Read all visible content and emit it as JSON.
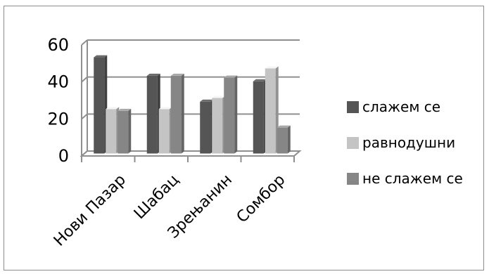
{
  "chart_data": {
    "type": "bar",
    "title": "",
    "xlabel": "",
    "ylabel": "",
    "ylim": [
      0,
      60
    ],
    "yticks": [
      0,
      20,
      40,
      60
    ],
    "grid": true,
    "legend_position": "right",
    "categories": [
      "Нови Пазар",
      "Шабац",
      "Зрењанин",
      "Сомбор"
    ],
    "series": [
      {
        "name": "слажем се",
        "color": "#555555",
        "values": [
          52,
          42,
          28,
          39
        ]
      },
      {
        "name": "равнодушни",
        "color": "#c4c4c4",
        "values": [
          24,
          24,
          30,
          46
        ]
      },
      {
        "name": "не слажем се",
        "color": "#868686",
        "values": [
          23,
          42,
          41,
          14
        ]
      }
    ]
  }
}
